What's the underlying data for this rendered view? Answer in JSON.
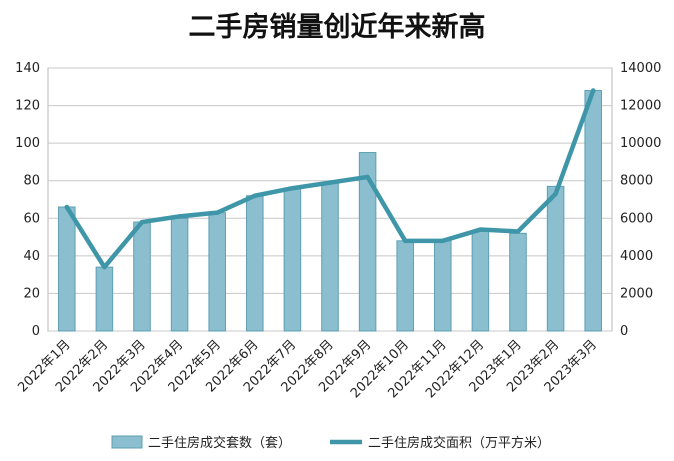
{
  "chart_data": {
    "type": "bar+line",
    "title": "二手房销量创近年来新高",
    "categories": [
      "2022年1月",
      "2022年2月",
      "2022年3月",
      "2022年4月",
      "2022年5月",
      "2022年6月",
      "2022年7月",
      "2022年8月",
      "2022年9月",
      "2022年10月",
      "2022年11月",
      "2022年12月",
      "2023年1月",
      "2023年2月",
      "2023年3月"
    ],
    "series": [
      {
        "name": "二手住房成交套数（套）",
        "type": "bar",
        "axis": "left",
        "color": "#8BBFD0",
        "values": [
          66,
          34,
          58,
          60,
          63,
          72,
          76,
          79,
          95,
          48,
          48,
          53,
          52,
          77,
          128
        ]
      },
      {
        "name": "二手住房成交面积（万平方米）",
        "type": "line",
        "axis": "right",
        "color": "#3E96A8",
        "values": [
          6600,
          3400,
          5800,
          6100,
          6300,
          7200,
          7600,
          7900,
          8200,
          4800,
          4800,
          5400,
          5300,
          7300,
          12800
        ]
      }
    ],
    "y_left": {
      "min": 0,
      "max": 140,
      "ticks": [
        0,
        20,
        40,
        60,
        80,
        100,
        120,
        140
      ]
    },
    "y_right": {
      "min": 0,
      "max": 14000,
      "ticks": [
        0,
        2000,
        4000,
        6000,
        8000,
        10000,
        12000,
        14000
      ]
    },
    "grid": true,
    "legend_position": "bottom"
  }
}
